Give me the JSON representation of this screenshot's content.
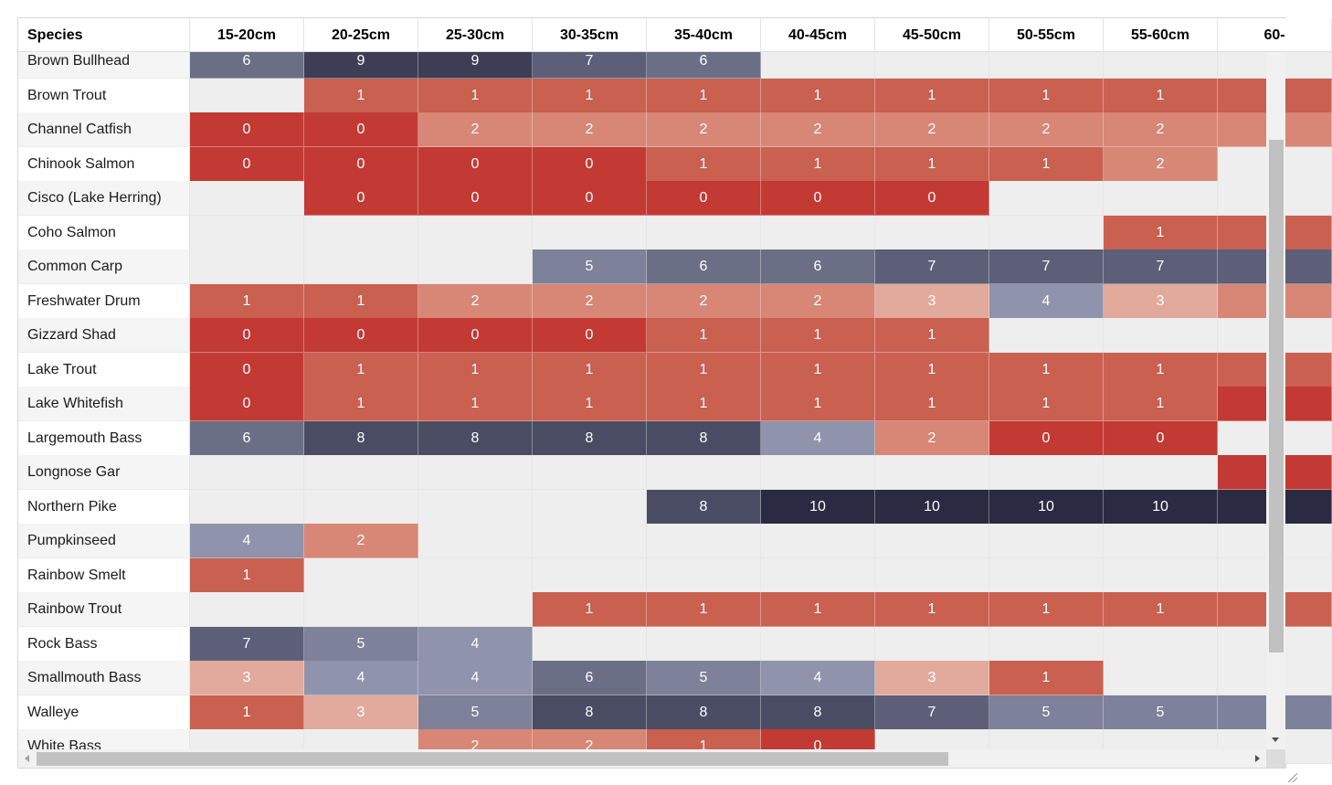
{
  "table": {
    "species_header": "Species"
  },
  "chart_data": {
    "type": "heatmap",
    "title": "",
    "row_header": "Species",
    "columns": [
      "15-20cm",
      "20-25cm",
      "25-30cm",
      "30-35cm",
      "35-40cm",
      "40-45cm",
      "45-50cm",
      "50-55cm",
      "55-60cm",
      "60-"
    ],
    "rows": [
      {
        "species": "Brown Bullhead",
        "values": [
          6,
          9,
          9,
          7,
          6,
          null,
          null,
          null,
          null,
          null
        ]
      },
      {
        "species": "Brown Trout",
        "values": [
          null,
          1,
          1,
          1,
          1,
          1,
          1,
          1,
          1,
          1
        ]
      },
      {
        "species": "Channel Catfish",
        "values": [
          0,
          0,
          2,
          2,
          2,
          2,
          2,
          2,
          2,
          2
        ]
      },
      {
        "species": "Chinook Salmon",
        "values": [
          0,
          0,
          0,
          0,
          1,
          1,
          1,
          1,
          2,
          null
        ]
      },
      {
        "species": "Cisco (Lake Herring)",
        "values": [
          null,
          0,
          0,
          0,
          0,
          0,
          0,
          null,
          null,
          null
        ]
      },
      {
        "species": "Coho Salmon",
        "values": [
          null,
          null,
          null,
          null,
          null,
          null,
          null,
          null,
          1,
          1
        ]
      },
      {
        "species": "Common Carp",
        "values": [
          null,
          null,
          null,
          5,
          6,
          6,
          7,
          7,
          7,
          7
        ]
      },
      {
        "species": "Freshwater Drum",
        "values": [
          1,
          1,
          2,
          2,
          2,
          2,
          3,
          4,
          3,
          2
        ]
      },
      {
        "species": "Gizzard Shad",
        "values": [
          0,
          0,
          0,
          0,
          1,
          1,
          1,
          null,
          null,
          null
        ]
      },
      {
        "species": "Lake Trout",
        "values": [
          0,
          1,
          1,
          1,
          1,
          1,
          1,
          1,
          1,
          1
        ]
      },
      {
        "species": "Lake Whitefish",
        "values": [
          0,
          1,
          1,
          1,
          1,
          1,
          1,
          1,
          1,
          0
        ]
      },
      {
        "species": "Largemouth Bass",
        "values": [
          6,
          8,
          8,
          8,
          8,
          4,
          2,
          0,
          0,
          null
        ]
      },
      {
        "species": "Longnose Gar",
        "values": [
          null,
          null,
          null,
          null,
          null,
          null,
          null,
          null,
          null,
          0
        ]
      },
      {
        "species": "Northern Pike",
        "values": [
          null,
          null,
          null,
          null,
          8,
          10,
          10,
          10,
          10,
          10
        ]
      },
      {
        "species": "Pumpkinseed",
        "values": [
          4,
          2,
          null,
          null,
          null,
          null,
          null,
          null,
          null,
          null
        ]
      },
      {
        "species": "Rainbow Smelt",
        "values": [
          1,
          null,
          null,
          null,
          null,
          null,
          null,
          null,
          null,
          null
        ]
      },
      {
        "species": "Rainbow Trout",
        "values": [
          null,
          null,
          null,
          1,
          1,
          1,
          1,
          1,
          1,
          1
        ]
      },
      {
        "species": "Rock Bass",
        "values": [
          7,
          5,
          4,
          null,
          null,
          null,
          null,
          null,
          null,
          null
        ]
      },
      {
        "species": "Smallmouth Bass",
        "values": [
          3,
          4,
          4,
          6,
          5,
          4,
          3,
          1,
          null,
          null
        ]
      },
      {
        "species": "Walleye",
        "values": [
          1,
          3,
          5,
          8,
          8,
          8,
          7,
          5,
          5,
          5
        ]
      },
      {
        "species": "White Bass",
        "values": [
          null,
          null,
          2,
          2,
          1,
          0,
          null,
          null,
          null,
          null
        ]
      }
    ],
    "color_scale": {
      "0": "#c23a33",
      "1": "#c96050",
      "2": "#d88676",
      "3": "#e2aa9c",
      "4": "#8f93ab",
      "5": "#7d8199",
      "6": "#6b6f86",
      "7": "#5c5f77",
      "8": "#4a4c63",
      "9": "#3d3e55",
      "10": "#2a2a42"
    },
    "empty_color": "#eeeeee"
  }
}
